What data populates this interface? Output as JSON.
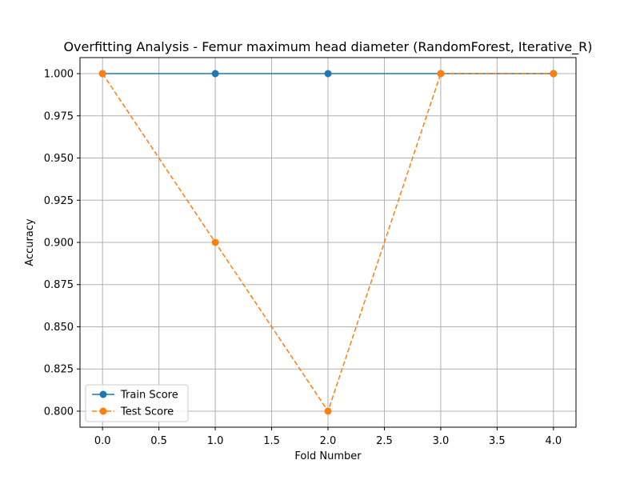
{
  "chart_data": {
    "type": "line",
    "title": "Overfitting Analysis - Femur maximum head diameter (RandomForest, Iterative_R)",
    "xlabel": "Fold Number",
    "ylabel": "Accuracy",
    "x": [
      0,
      1,
      2,
      3,
      4
    ],
    "xlim": [
      -0.2,
      4.2
    ],
    "ylim": [
      0.7905,
      1.0095
    ],
    "x_ticks": [
      0.0,
      0.5,
      1.0,
      1.5,
      2.0,
      2.5,
      3.0,
      3.5,
      4.0
    ],
    "x_tick_labels": [
      "0.0",
      "0.5",
      "1.0",
      "1.5",
      "2.0",
      "2.5",
      "3.0",
      "3.5",
      "4.0"
    ],
    "y_ticks": [
      0.8,
      0.825,
      0.85,
      0.875,
      0.9,
      0.925,
      0.95,
      0.975,
      1.0
    ],
    "y_tick_labels": [
      "0.800",
      "0.825",
      "0.850",
      "0.875",
      "0.900",
      "0.925",
      "0.950",
      "0.975",
      "1.000"
    ],
    "grid": true,
    "legend_position": "lower-left",
    "series": [
      {
        "name": "Train Score",
        "values": [
          1.0,
          1.0,
          1.0,
          1.0,
          1.0
        ],
        "color": "#1f77b4",
        "line_style": "solid",
        "marker": "circle"
      },
      {
        "name": "Test Score",
        "values": [
          1.0,
          0.9,
          0.8,
          1.0,
          1.0
        ],
        "color": "#ff7f0e",
        "line_style": "dashed",
        "marker": "circle"
      }
    ]
  }
}
